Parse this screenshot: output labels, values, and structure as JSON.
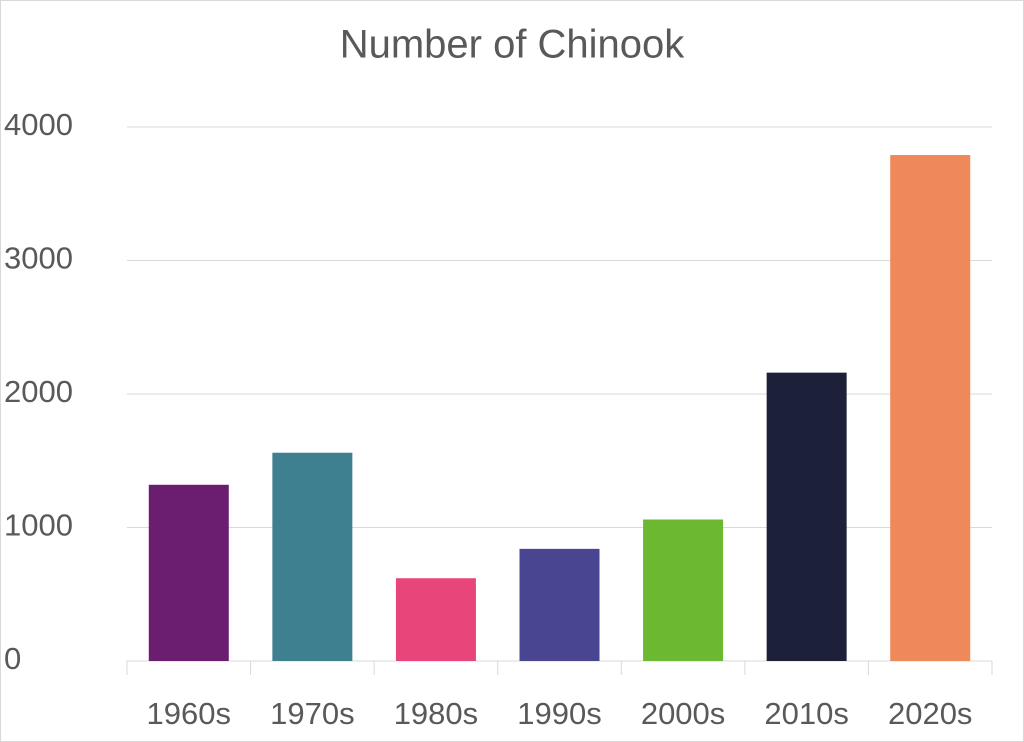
{
  "chart_data": {
    "type": "bar",
    "title": "Number of Chinook",
    "categories": [
      "1960s",
      "1970s",
      "1980s",
      "1990s",
      "2000s",
      "2010s",
      "2020s"
    ],
    "values": [
      1320,
      1560,
      620,
      840,
      1060,
      2160,
      3790
    ],
    "colors": [
      "#6b1d6f",
      "#3f8090",
      "#e8457a",
      "#4a4590",
      "#6cb830",
      "#1c2038",
      "#f0895a"
    ],
    "ylim": [
      0,
      4000
    ],
    "yticks": [
      0,
      1000,
      2000,
      3000,
      4000
    ],
    "grid": true
  }
}
